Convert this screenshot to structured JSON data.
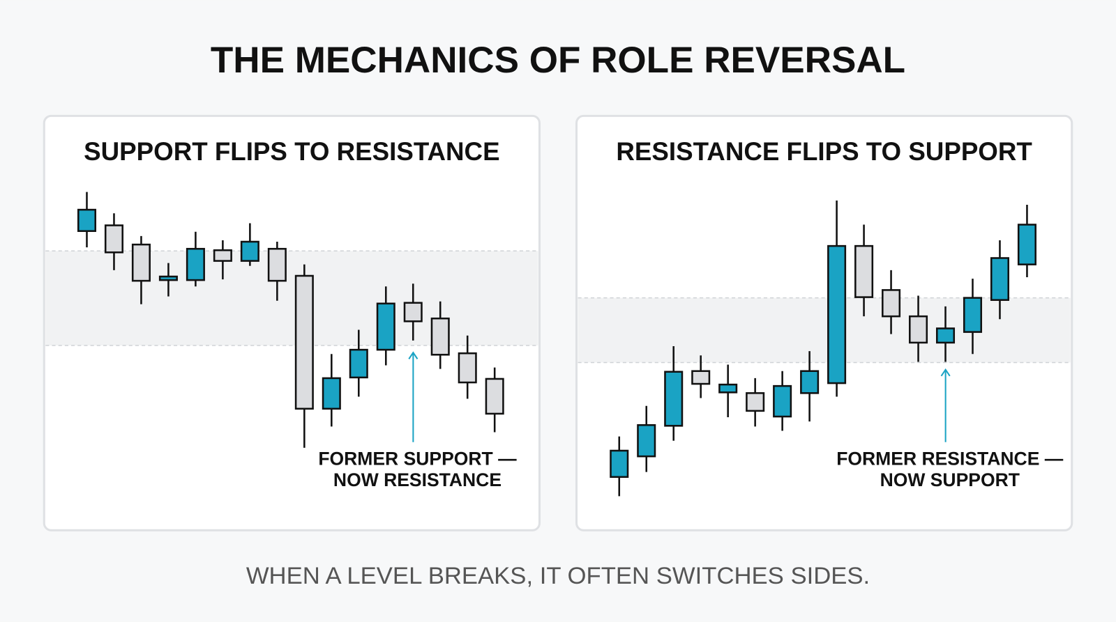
{
  "title": "THE MECHANICS OF ROLE REVERSAL",
  "footer": "WHEN A LEVEL BREAKS, IT OFTEN SWITCHES SIDES.",
  "chart_data": [
    {
      "type": "candlestick",
      "title": "SUPPORT FLIPS TO RESISTANCE",
      "open": [
        375,
        383,
        356,
        306,
        306,
        348,
        333,
        350,
        312,
        125,
        169,
        208,
        274,
        252,
        203,
        167
      ],
      "high": [
        430,
        400,
        368,
        330,
        374,
        362,
        386,
        360,
        328,
        202,
        236,
        297,
        301,
        276,
        228,
        183
      ],
      "low": [
        352,
        320,
        272,
        283,
        297,
        307,
        326,
        277,
        70,
        100,
        142,
        186,
        221,
        181,
        139,
        92
      ],
      "close": [
        405,
        345,
        305,
        311,
        350,
        333,
        360,
        305,
        125,
        168,
        208,
        273,
        248,
        201,
        162,
        118
      ],
      "up_color": "#1aa3c4",
      "down_color": "#dcdde0",
      "zone": [
        214,
        347
      ],
      "annotation": [
        "FORMER SUPPORT —",
        "NOW RESISTANCE"
      ],
      "ylim": [
        0,
        450
      ]
    },
    {
      "type": "candlestick",
      "title": "RESISTANCE FLIPS TO SUPPORT",
      "open": [
        29,
        58,
        101,
        178,
        148,
        147,
        114,
        147,
        161,
        354,
        292,
        255,
        218,
        233,
        278,
        328
      ],
      "high": [
        86,
        129,
        213,
        200,
        187,
        168,
        178,
        206,
        418,
        384,
        320,
        284,
        269,
        308,
        362,
        412
      ],
      "low": [
        2,
        36,
        80,
        140,
        113,
        100,
        94,
        107,
        142,
        255,
        230,
        191,
        191,
        202,
        251,
        310
      ],
      "close": [
        66,
        102,
        177,
        160,
        159,
        122,
        157,
        178,
        354,
        282,
        255,
        218,
        238,
        281,
        337,
        384
      ],
      "up_color": "#1aa3c4",
      "down_color": "#dcdde0",
      "zone": [
        190,
        281
      ],
      "annotation": [
        "FORMER RESISTANCE —",
        "NOW SUPPORT"
      ],
      "ylim": [
        0,
        450
      ]
    }
  ]
}
